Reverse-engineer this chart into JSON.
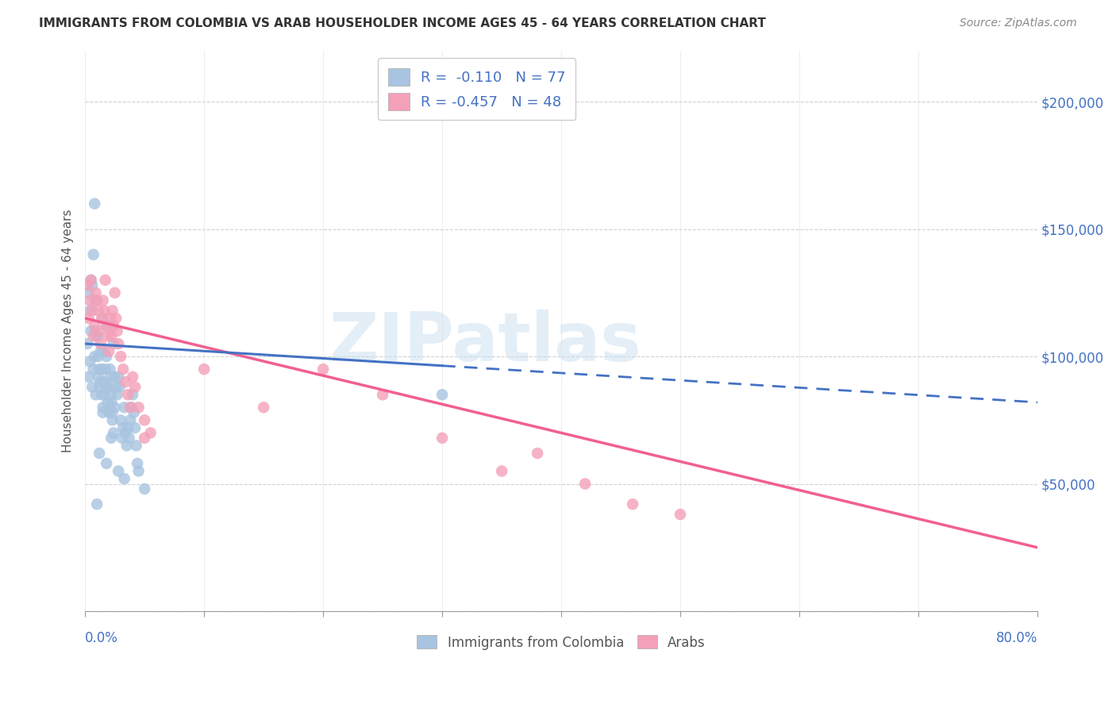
{
  "title": "IMMIGRANTS FROM COLOMBIA VS ARAB HOUSEHOLDER INCOME AGES 45 - 64 YEARS CORRELATION CHART",
  "source": "Source: ZipAtlas.com",
  "ylabel": "Householder Income Ages 45 - 64 years",
  "xlim": [
    0.0,
    0.8
  ],
  "ylim": [
    0,
    220000
  ],
  "colombia_color": "#a8c4e0",
  "arab_color": "#f4a0b8",
  "colombia_line_color": "#4472c4",
  "arab_line_color": "#f06090",
  "R_colombia": -0.11,
  "N_colombia": 77,
  "R_arab": -0.457,
  "N_arab": 48,
  "watermark_text": "ZIPatlas",
  "watermark_color": "#c8dff0",
  "background_color": "#ffffff",
  "grid_color": "#cccccc",
  "colombia_scatter_x": [
    0.002,
    0.003,
    0.004,
    0.005,
    0.006,
    0.007,
    0.008,
    0.009,
    0.01,
    0.011,
    0.012,
    0.013,
    0.014,
    0.015,
    0.016,
    0.017,
    0.018,
    0.019,
    0.02,
    0.021,
    0.022,
    0.023,
    0.024,
    0.025,
    0.026,
    0.003,
    0.004,
    0.005,
    0.006,
    0.007,
    0.008,
    0.009,
    0.01,
    0.011,
    0.012,
    0.013,
    0.014,
    0.015,
    0.016,
    0.017,
    0.018,
    0.019,
    0.02,
    0.021,
    0.022,
    0.023,
    0.024,
    0.025,
    0.027,
    0.028,
    0.029,
    0.03,
    0.031,
    0.032,
    0.033,
    0.034,
    0.035,
    0.036,
    0.037,
    0.038,
    0.039,
    0.04,
    0.041,
    0.042,
    0.043,
    0.044,
    0.045,
    0.05,
    0.3,
    0.012,
    0.015,
    0.018,
    0.022,
    0.028,
    0.033,
    0.01,
    0.008
  ],
  "colombia_scatter_y": [
    105000,
    92000,
    98000,
    110000,
    88000,
    95000,
    100000,
    85000,
    108000,
    92000,
    88000,
    102000,
    95000,
    115000,
    85000,
    90000,
    100000,
    112000,
    88000,
    95000,
    82000,
    78000,
    105000,
    92000,
    88000,
    125000,
    118000,
    130000,
    128000,
    140000,
    122000,
    110000,
    108000,
    100000,
    95000,
    90000,
    85000,
    80000,
    102000,
    95000,
    88000,
    82000,
    78000,
    92000,
    85000,
    75000,
    70000,
    80000,
    85000,
    92000,
    88000,
    75000,
    68000,
    72000,
    80000,
    70000,
    65000,
    72000,
    68000,
    75000,
    80000,
    85000,
    78000,
    72000,
    65000,
    58000,
    55000,
    48000,
    85000,
    62000,
    78000,
    58000,
    68000,
    55000,
    52000,
    42000,
    160000
  ],
  "arab_scatter_x": [
    0.002,
    0.003,
    0.004,
    0.005,
    0.006,
    0.007,
    0.008,
    0.009,
    0.01,
    0.011,
    0.012,
    0.013,
    0.014,
    0.015,
    0.016,
    0.017,
    0.018,
    0.019,
    0.02,
    0.021,
    0.022,
    0.023,
    0.024,
    0.025,
    0.026,
    0.027,
    0.028,
    0.03,
    0.032,
    0.034,
    0.036,
    0.038,
    0.04,
    0.042,
    0.045,
    0.05,
    0.055,
    0.3,
    0.35,
    0.38,
    0.42,
    0.46,
    0.5,
    0.2,
    0.25,
    0.1,
    0.15,
    0.05
  ],
  "arab_scatter_y": [
    128000,
    115000,
    122000,
    130000,
    118000,
    108000,
    112000,
    125000,
    122000,
    118000,
    110000,
    105000,
    115000,
    122000,
    118000,
    130000,
    112000,
    108000,
    102000,
    115000,
    108000,
    118000,
    112000,
    125000,
    115000,
    110000,
    105000,
    100000,
    95000,
    90000,
    85000,
    80000,
    92000,
    88000,
    80000,
    75000,
    70000,
    68000,
    55000,
    62000,
    50000,
    42000,
    38000,
    95000,
    85000,
    95000,
    80000,
    68000
  ]
}
